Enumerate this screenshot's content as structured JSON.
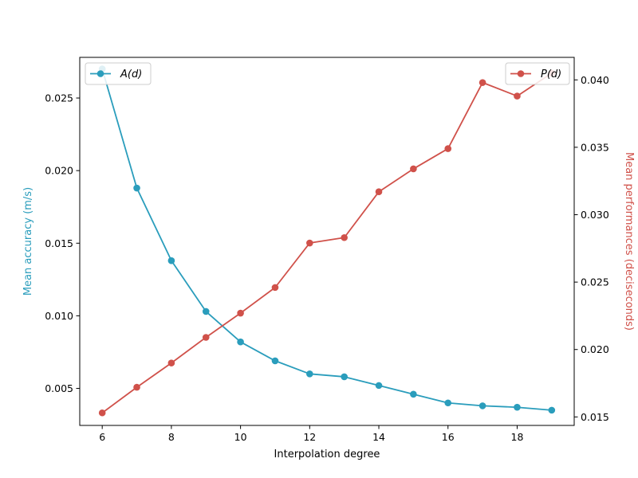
{
  "chart_data": {
    "type": "line",
    "xlabel": "Interpolation degree",
    "x": [
      6,
      7,
      8,
      9,
      10,
      11,
      12,
      13,
      14,
      15,
      16,
      17,
      18,
      19
    ],
    "xlim": [
      5.35,
      19.65
    ],
    "xticks": [
      6,
      8,
      10,
      12,
      14,
      16,
      18
    ],
    "grid": false,
    "series": [
      {
        "name": "A(d)",
        "axis": "left",
        "color": "#2a9dbc",
        "ylabel": "Mean accuracy (m/s)",
        "ylim": [
          0.00245,
          0.0278
        ],
        "yticks": [
          0.005,
          0.01,
          0.015,
          0.02,
          0.025
        ],
        "ytick_labels": [
          "0.005",
          "0.010",
          "0.015",
          "0.020",
          "0.025"
        ],
        "legend_position": "top-left",
        "values": [
          0.027,
          0.0188,
          0.0138,
          0.0103,
          0.0082,
          0.0069,
          0.006,
          0.0058,
          0.0052,
          0.0046,
          0.004,
          0.0038,
          0.0037,
          0.0035
        ]
      },
      {
        "name": "P(d)",
        "axis": "right",
        "color": "#d0514a",
        "ylabel": "Mean performances (deciseconds)",
        "ylim": [
          0.01437,
          0.04167
        ],
        "yticks": [
          0.015,
          0.02,
          0.025,
          0.03,
          0.035,
          0.04
        ],
        "ytick_labels": [
          "0.015",
          "0.020",
          "0.025",
          "0.030",
          "0.035",
          "0.040"
        ],
        "legend_position": "top-right",
        "values": [
          0.0153,
          0.0172,
          0.019,
          0.0209,
          0.0227,
          0.0246,
          0.0279,
          0.0283,
          0.0317,
          0.0334,
          0.0349,
          0.0398,
          0.0388,
          0.0405
        ]
      }
    ]
  }
}
